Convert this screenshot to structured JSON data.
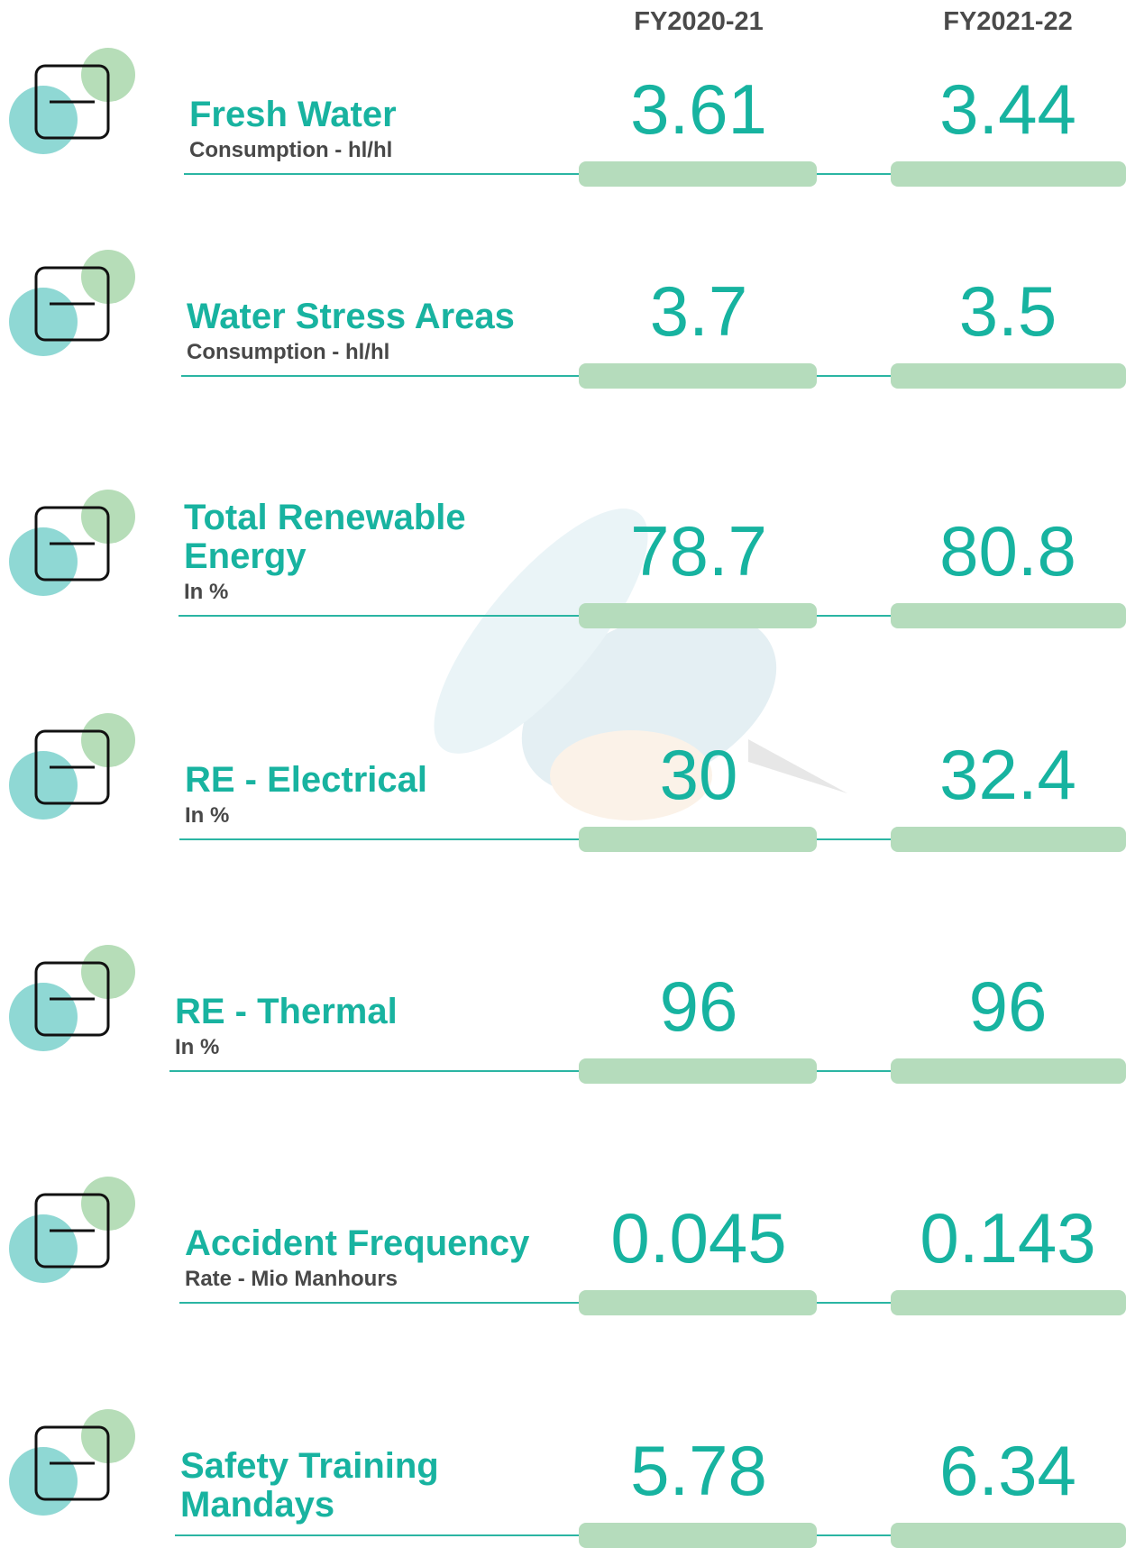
{
  "header": {
    "columns": [
      "FY2020-21",
      "FY2021-22"
    ]
  },
  "rows": [
    {
      "title": "Fresh Water",
      "subtitle": "Consumption - hl/hl",
      "values": [
        "3.61",
        "3.44"
      ]
    },
    {
      "title": "Water Stress Areas",
      "subtitle": "Consumption - hl/hl",
      "values": [
        "3.7",
        "3.5"
      ]
    },
    {
      "title": "Total Renewable Energy",
      "subtitle": "In %",
      "values": [
        "78.7",
        "80.8"
      ]
    },
    {
      "title": "RE - Electrical",
      "subtitle": "In %",
      "values": [
        "30",
        "32.4"
      ]
    },
    {
      "title": "RE - Thermal",
      "subtitle": "In %",
      "values": [
        "96",
        "96"
      ]
    },
    {
      "title": "Accident Frequency",
      "subtitle": "Rate - Mio Manhours",
      "values": [
        "0.045",
        "0.143"
      ]
    },
    {
      "title": "Safety Training Mandays",
      "values": [
        "5.78",
        "6.34"
      ]
    }
  ]
}
